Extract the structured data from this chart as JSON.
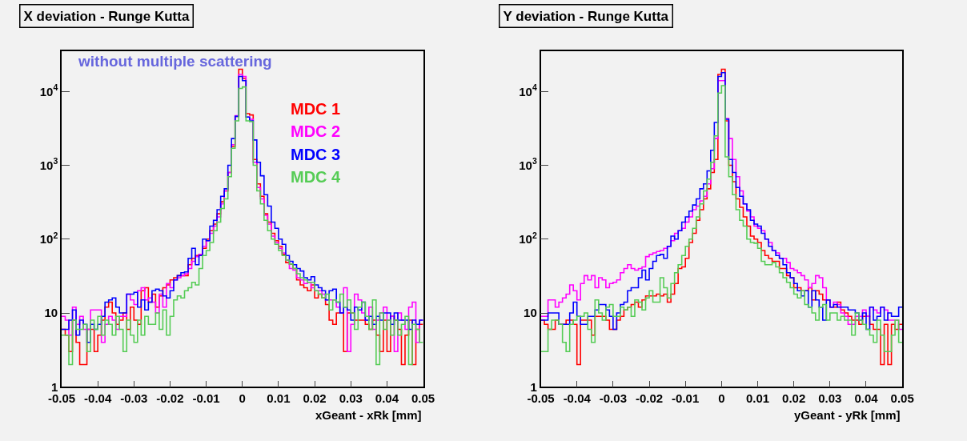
{
  "chart_data": [
    {
      "type": "histogram",
      "title": "X deviation - Runge Kutta",
      "xlabel": "xGeant - xRk [mm]",
      "annotations": [
        "without multiple scattering"
      ],
      "log": "y",
      "legend": "top right",
      "bins": [
        -0.05,
        -0.049,
        -0.048,
        -0.047,
        -0.046,
        -0.045,
        -0.044,
        -0.043,
        -0.042,
        -0.041,
        -0.04,
        -0.039,
        -0.038,
        -0.037,
        -0.036,
        -0.035,
        -0.034,
        -0.033,
        -0.032,
        -0.031,
        -0.03,
        -0.029,
        -0.028,
        -0.027,
        -0.026,
        -0.025,
        -0.024,
        -0.023,
        -0.022,
        -0.021,
        -0.02,
        -0.019,
        -0.018,
        -0.017,
        -0.016,
        -0.015,
        -0.014,
        -0.013,
        -0.012,
        -0.011,
        -0.01,
        -0.009,
        -0.008,
        -0.007,
        -0.006,
        -0.005,
        -0.004,
        -0.003,
        -0.002,
        -0.001,
        0,
        0.001,
        0.002,
        0.003,
        0.004,
        0.005,
        0.006,
        0.007,
        0.008,
        0.009,
        0.01,
        0.011,
        0.012,
        0.013,
        0.014,
        0.015,
        0.016,
        0.017,
        0.018,
        0.019,
        0.02,
        0.021,
        0.022,
        0.023,
        0.024,
        0.025,
        0.026,
        0.027,
        0.028,
        0.029,
        0.03,
        0.031,
        0.032,
        0.033,
        0.034,
        0.035,
        0.036,
        0.037,
        0.038,
        0.039,
        0.04,
        0.041,
        0.042,
        0.043,
        0.044,
        0.045,
        0.046,
        0.047,
        0.048,
        0.049,
        0.05
      ],
      "xlim": [
        -0.05,
        0.05
      ],
      "xticks": [
        -0.05,
        -0.04,
        -0.03,
        -0.02,
        -0.01,
        0,
        0.01,
        0.02,
        0.03,
        0.04,
        0.05
      ],
      "ylim": [
        1,
        35000
      ],
      "yticks": [
        1,
        10,
        {
          "value": 100,
          "label": "10$^{2}$"
        },
        {
          "value": 1000,
          "label": "10$^{3}$"
        },
        {
          "value": 10000,
          "label": "10$^{4}$"
        }
      ],
      "series": [
        {
          "name": "MDC 1",
          "color": "#ff0000",
          "values": [
            6,
            5,
            3,
            8,
            4,
            2,
            2,
            6,
            6,
            3,
            5,
            8,
            12,
            14,
            10,
            7,
            8,
            10,
            6,
            12,
            8,
            7,
            20,
            22,
            14,
            18,
            12,
            17,
            22,
            24,
            28,
            30,
            32,
            32,
            32,
            45,
            55,
            60,
            62,
            75,
            100,
            130,
            160,
            220,
            320,
            450,
            800,
            1800,
            4600,
            20000,
            15000,
            5000,
            4800,
            1200,
            560,
            380,
            220,
            170,
            120,
            95,
            80,
            62,
            48,
            46,
            40,
            28,
            24,
            22,
            20,
            24,
            16,
            18,
            16,
            13,
            8,
            7,
            10,
            10,
            3,
            10,
            10,
            8,
            8,
            8,
            7,
            6,
            8,
            5,
            3,
            8,
            3,
            9,
            8,
            6,
            2,
            5,
            8,
            2,
            6,
            7
          ]
        },
        {
          "name": "MDC 2",
          "color": "#ff00ff",
          "values": [
            9,
            8,
            5,
            12,
            7,
            9,
            6,
            6,
            11,
            11,
            11,
            4,
            7,
            9,
            8,
            6,
            9,
            9,
            18,
            15,
            13,
            20,
            22,
            15,
            16,
            14,
            10,
            18,
            12,
            25,
            22,
            28,
            30,
            32,
            34,
            40,
            50,
            58,
            62,
            80,
            95,
            120,
            150,
            200,
            300,
            450,
            800,
            1900,
            4700,
            17000,
            16000,
            4500,
            4200,
            1100,
            500,
            350,
            210,
            160,
            110,
            90,
            75,
            65,
            52,
            40,
            38,
            30,
            28,
            25,
            26,
            22,
            20,
            20,
            18,
            15,
            15,
            15,
            12,
            10,
            22,
            3,
            7,
            18,
            15,
            10,
            8,
            12,
            6,
            8,
            10,
            12,
            8,
            9,
            3,
            10,
            8,
            6,
            12,
            14,
            4,
            8
          ]
        },
        {
          "name": "MDC 3",
          "color": "#0000ff",
          "values": [
            6,
            6,
            8,
            11,
            5,
            8,
            7,
            4,
            7,
            6,
            7,
            9,
            14,
            15,
            16,
            12,
            10,
            10,
            18,
            18,
            19,
            12,
            15,
            11,
            14,
            20,
            21,
            20,
            17,
            16,
            20,
            28,
            32,
            35,
            36,
            55,
            75,
            45,
            60,
            100,
            95,
            150,
            180,
            250,
            380,
            480,
            1000,
            2300,
            4600,
            16000,
            14000,
            4500,
            4000,
            2200,
            1100,
            720,
            400,
            280,
            170,
            140,
            100,
            85,
            60,
            50,
            45,
            40,
            37,
            30,
            28,
            31,
            24,
            22,
            20,
            15,
            20,
            21,
            14,
            10,
            12,
            11,
            8,
            12,
            11,
            14,
            8,
            9,
            7,
            9,
            8,
            10,
            10,
            7,
            10,
            8,
            8,
            8,
            6,
            8,
            7,
            8
          ]
        },
        {
          "name": "MDC 4",
          "color": "#55cc55",
          "values": [
            5,
            5,
            2,
            8,
            6,
            6,
            7,
            3,
            8,
            6,
            9,
            5,
            8,
            7,
            5,
            9,
            6,
            3,
            8,
            5,
            4,
            8,
            5,
            9,
            7,
            7,
            10,
            6,
            11,
            5,
            9,
            15,
            17,
            16,
            20,
            22,
            26,
            24,
            40,
            60,
            70,
            90,
            130,
            170,
            260,
            350,
            700,
            1700,
            4000,
            11000,
            11500,
            4000,
            3900,
            1000,
            450,
            300,
            180,
            130,
            100,
            85,
            70,
            60,
            52,
            46,
            40,
            34,
            30,
            28,
            26,
            26,
            20,
            18,
            16,
            18,
            11,
            15,
            14,
            18,
            12,
            15,
            10,
            6,
            12,
            14,
            9,
            6,
            15,
            2,
            10,
            6,
            8,
            5,
            8,
            5,
            7,
            9,
            2,
            7,
            6,
            4
          ]
        }
      ]
    },
    {
      "type": "histogram",
      "title": "Y deviation - Runge Kutta",
      "xlabel": "yGeant - yRk [mm]",
      "log": "y",
      "bins": [
        -0.05,
        -0.049,
        -0.048,
        -0.047,
        -0.046,
        -0.045,
        -0.044,
        -0.043,
        -0.042,
        -0.041,
        -0.04,
        -0.039,
        -0.038,
        -0.037,
        -0.036,
        -0.035,
        -0.034,
        -0.033,
        -0.032,
        -0.031,
        -0.03,
        -0.029,
        -0.028,
        -0.027,
        -0.026,
        -0.025,
        -0.024,
        -0.023,
        -0.022,
        -0.021,
        -0.02,
        -0.019,
        -0.018,
        -0.017,
        -0.016,
        -0.015,
        -0.014,
        -0.013,
        -0.012,
        -0.011,
        -0.01,
        -0.009,
        -0.008,
        -0.007,
        -0.006,
        -0.005,
        -0.004,
        -0.003,
        -0.002,
        -0.001,
        0,
        0.001,
        0.002,
        0.003,
        0.004,
        0.005,
        0.006,
        0.007,
        0.008,
        0.009,
        0.01,
        0.011,
        0.012,
        0.013,
        0.014,
        0.015,
        0.016,
        0.017,
        0.018,
        0.019,
        0.02,
        0.021,
        0.022,
        0.023,
        0.024,
        0.025,
        0.026,
        0.027,
        0.028,
        0.029,
        0.03,
        0.031,
        0.032,
        0.033,
        0.034,
        0.035,
        0.036,
        0.037,
        0.038,
        0.039,
        0.04,
        0.041,
        0.042,
        0.043,
        0.044,
        0.045,
        0.046,
        0.047,
        0.048,
        0.049,
        0.05
      ],
      "xlim": [
        -0.05,
        0.05
      ],
      "xticks": [
        -0.05,
        -0.04,
        -0.03,
        -0.02,
        -0.01,
        0,
        0.01,
        0.02,
        0.03,
        0.04,
        0.05
      ],
      "ylim": [
        1,
        35000
      ],
      "yticks": [
        1,
        10,
        {
          "value": 100,
          "label": "10$^{2}$"
        },
        {
          "value": 1000,
          "label": "10$^{3}$"
        },
        {
          "value": 10000,
          "label": "10$^{4}$"
        }
      ],
      "series": [
        {
          "color": "#ff0000",
          "values": [
            8,
            7,
            6,
            6,
            8,
            7,
            7,
            8,
            8,
            7,
            2,
            8,
            8,
            8,
            5,
            9,
            9,
            9,
            8,
            6,
            6,
            8,
            9,
            11,
            12,
            13,
            14,
            12,
            15,
            17,
            17,
            17,
            18,
            17,
            18,
            14,
            18,
            25,
            40,
            42,
            55,
            90,
            120,
            180,
            250,
            350,
            480,
            800,
            1200,
            17000,
            20000,
            4000,
            1000,
            600,
            350,
            270,
            200,
            150,
            110,
            100,
            90,
            70,
            60,
            55,
            50,
            50,
            40,
            40,
            32,
            30,
            22,
            22,
            20,
            20,
            22,
            15,
            20,
            18,
            15,
            15,
            12,
            12,
            14,
            11,
            10,
            9,
            8,
            8,
            7,
            9,
            9,
            7,
            6,
            6,
            2,
            7,
            2,
            7,
            6,
            7
          ]
        },
        {
          "color": "#ff00ff",
          "values": [
            9,
            9,
            15,
            15,
            12,
            14,
            16,
            18,
            24,
            20,
            15,
            25,
            32,
            28,
            32,
            22,
            30,
            28,
            22,
            25,
            26,
            28,
            35,
            40,
            45,
            40,
            38,
            40,
            42,
            58,
            62,
            65,
            68,
            70,
            75,
            80,
            95,
            120,
            130,
            140,
            170,
            200,
            250,
            280,
            330,
            380,
            560,
            900,
            2300,
            14000,
            14000,
            4300,
            2300,
            1200,
            700,
            450,
            300,
            240,
            200,
            150,
            140,
            130,
            100,
            90,
            70,
            65,
            55,
            55,
            48,
            40,
            38,
            35,
            32,
            28,
            22,
            25,
            32,
            30,
            22,
            15,
            12,
            14,
            13,
            10,
            9,
            7,
            7,
            9,
            9,
            11,
            9,
            12,
            11,
            10,
            12,
            11,
            8,
            8,
            8,
            6
          ]
        },
        {
          "color": "#0000ff",
          "values": [
            8,
            8,
            10,
            10,
            10,
            7,
            7,
            7,
            10,
            14,
            9,
            7,
            7,
            9,
            9,
            11,
            13,
            13,
            11,
            9,
            6,
            10,
            13,
            14,
            20,
            22,
            22,
            30,
            38,
            28,
            40,
            50,
            60,
            62,
            55,
            80,
            110,
            100,
            130,
            170,
            200,
            240,
            290,
            350,
            480,
            560,
            840,
            1600,
            3800,
            16000,
            18000,
            4200,
            1200,
            800,
            500,
            380,
            300,
            250,
            180,
            160,
            150,
            120,
            100,
            80,
            70,
            60,
            55,
            45,
            35,
            30,
            25,
            20,
            17,
            20,
            12,
            20,
            15,
            12,
            8,
            15,
            12,
            13,
            12,
            12,
            12,
            11,
            11,
            10,
            8,
            10,
            6,
            12,
            8,
            9,
            12,
            8,
            10,
            9,
            9,
            12
          ]
        },
        {
          "color": "#55cc55",
          "values": [
            3,
            3,
            6,
            8,
            8,
            7,
            4,
            3,
            7,
            8,
            9,
            9,
            10,
            6,
            4,
            15,
            10,
            8,
            12,
            13,
            9,
            9,
            12,
            11,
            12,
            9,
            15,
            14,
            11,
            16,
            20,
            14,
            14,
            30,
            22,
            16,
            25,
            35,
            45,
            60,
            80,
            100,
            140,
            200,
            300,
            450,
            650,
            1100,
            2500,
            9500,
            12000,
            1300,
            700,
            400,
            250,
            180,
            150,
            100,
            90,
            88,
            75,
            50,
            45,
            45,
            48,
            42,
            35,
            30,
            26,
            22,
            18,
            16,
            20,
            13,
            12,
            10,
            8,
            12,
            13,
            8,
            10,
            10,
            8,
            9,
            8,
            8,
            5,
            10,
            8,
            7,
            6,
            5,
            4,
            8,
            5,
            3,
            3,
            5,
            8,
            4
          ]
        }
      ]
    }
  ]
}
